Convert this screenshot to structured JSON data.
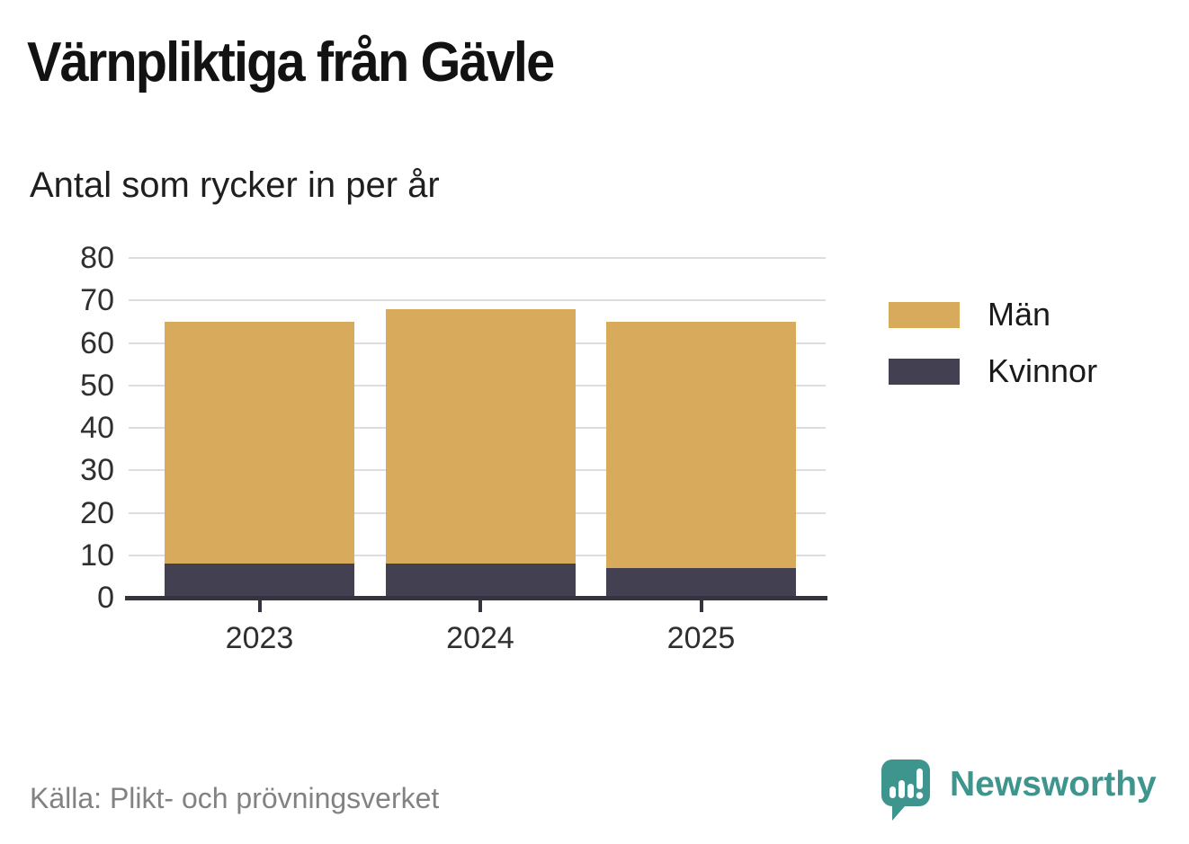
{
  "title": "Värnpliktiga från Gävle",
  "subtitle": "Antal som rycker in per år",
  "source": "Källa: Plikt- och prövningsverket",
  "brand": {
    "name": "Newsworthy",
    "color": "#3e958e",
    "icon": "bar-chart-speech-bubble-icon"
  },
  "colors": {
    "men": "#d8aa5c",
    "women": "#434051",
    "axis": "#35333e",
    "grid": "#dddde1",
    "tick_text": "#2f2f2f",
    "source_text": "#828282"
  },
  "chart_data": {
    "type": "bar",
    "stacked": true,
    "title": "Värnpliktiga från Gävle",
    "subtitle": "Antal som rycker in per år",
    "categories": [
      "2023",
      "2024",
      "2025"
    ],
    "series": [
      {
        "name": "Män",
        "color": "#d8aa5c",
        "values": [
          57,
          60,
          58
        ]
      },
      {
        "name": "Kvinnor",
        "color": "#434051",
        "values": [
          8,
          8,
          7
        ]
      }
    ],
    "stack_order_bottom_to_top": [
      "Kvinnor",
      "Män"
    ],
    "totals": [
      65,
      68,
      65
    ],
    "xlabel": "",
    "ylabel": "",
    "ylim": [
      0,
      80
    ],
    "yticks": [
      0,
      10,
      20,
      30,
      40,
      50,
      60,
      70,
      80
    ],
    "grid": true,
    "legend_position": "right"
  }
}
